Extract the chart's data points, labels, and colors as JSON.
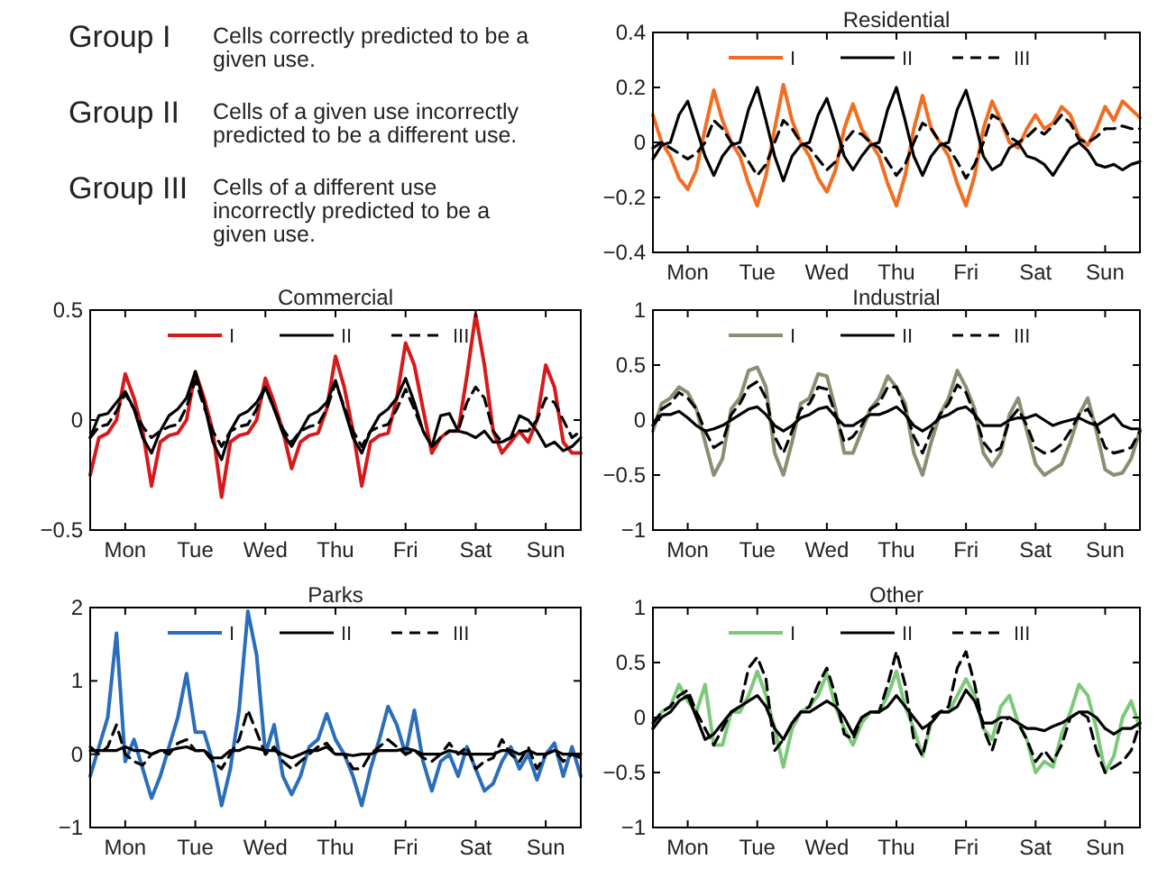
{
  "chart_data": [
    {
      "type": "other",
      "annotations": [
        "Group I",
        "Cells correctly predicted to be a given use.",
        "Group II",
        "Cells of a given use incorrectly predicted to be a different use.",
        "Group III",
        "Cells of a different use incorrectly predicted to be a given use."
      ]
    },
    {
      "type": "line",
      "title": "Residential",
      "categories": [
        null,
        null,
        null,
        null,
        "Mon",
        null,
        null,
        null,
        null,
        null,
        null,
        null,
        "Tue",
        null,
        null,
        null,
        null,
        null,
        null,
        null,
        "Wed",
        null,
        null,
        null,
        null,
        null,
        null,
        null,
        "Thu",
        null,
        null,
        null,
        null,
        null,
        null,
        null,
        "Fri",
        null,
        null,
        null,
        null,
        null,
        null,
        null,
        "Sat",
        null,
        null,
        null,
        null,
        null,
        null,
        null,
        "Sun",
        null,
        null,
        null,
        null
      ],
      "ylim": [
        -0.4,
        0.4
      ],
      "yticks": [
        -0.4,
        -0.2,
        0,
        0.2,
        0.4
      ],
      "legend": "top",
      "series": [
        {
          "name": "I",
          "color": "#f26d21",
          "values": [
            0.1,
            0.0,
            -0.05,
            -0.13,
            -0.17,
            -0.1,
            0.05,
            0.19,
            0.08,
            0.0,
            -0.05,
            -0.15,
            -0.23,
            -0.12,
            0.05,
            0.21,
            0.08,
            0.0,
            -0.05,
            -0.13,
            -0.18,
            -0.1,
            0.05,
            0.14,
            0.05,
            0.0,
            -0.05,
            -0.15,
            -0.23,
            -0.12,
            0.05,
            0.17,
            0.05,
            0.0,
            -0.05,
            -0.15,
            -0.23,
            -0.12,
            0.05,
            0.15,
            0.08,
            0.0,
            -0.02,
            0.05,
            0.1,
            0.05,
            0.07,
            0.13,
            0.1,
            0.02,
            -0.01,
            0.05,
            0.13,
            0.08,
            0.15,
            0.12,
            0.09
          ]
        },
        {
          "name": "II",
          "color": "#000000",
          "line_style": "solid",
          "values": [
            -0.06,
            -0.01,
            0.0,
            0.1,
            0.15,
            0.05,
            -0.05,
            -0.12,
            -0.05,
            -0.01,
            0.0,
            0.12,
            0.2,
            0.08,
            -0.05,
            -0.14,
            -0.05,
            -0.01,
            0.0,
            0.1,
            0.16,
            0.06,
            -0.05,
            -0.1,
            -0.05,
            -0.01,
            0.0,
            0.12,
            0.2,
            0.08,
            -0.05,
            -0.12,
            -0.05,
            -0.01,
            0.0,
            0.12,
            0.19,
            0.08,
            -0.05,
            -0.1,
            -0.08,
            -0.02,
            0.0,
            -0.05,
            -0.06,
            -0.08,
            -0.12,
            -0.07,
            -0.02,
            0.0,
            -0.03,
            -0.08,
            -0.09,
            -0.08,
            -0.1,
            -0.08,
            -0.07
          ]
        },
        {
          "name": "III",
          "color": "#000000",
          "line_style": "dashed",
          "values": [
            -0.02,
            0.0,
            -0.02,
            -0.04,
            -0.06,
            -0.04,
            0.0,
            0.08,
            0.05,
            0.0,
            -0.02,
            -0.07,
            -0.12,
            -0.08,
            0.0,
            0.08,
            0.05,
            0.0,
            -0.02,
            -0.06,
            -0.1,
            -0.07,
            0.0,
            0.04,
            0.03,
            0.0,
            -0.02,
            -0.07,
            -0.12,
            -0.08,
            0.0,
            0.07,
            0.05,
            0.0,
            -0.02,
            -0.07,
            -0.13,
            -0.08,
            0.0,
            0.1,
            0.08,
            0.02,
            0.0,
            0.02,
            0.05,
            0.03,
            0.06,
            0.1,
            0.07,
            0.01,
            0.0,
            0.02,
            0.05,
            0.05,
            0.06,
            0.05,
            0.05
          ]
        }
      ]
    },
    {
      "type": "line",
      "title": "Commercial",
      "categories": [
        null,
        null,
        null,
        null,
        "Mon",
        null,
        null,
        null,
        null,
        null,
        null,
        null,
        "Tue",
        null,
        null,
        null,
        null,
        null,
        null,
        null,
        "Wed",
        null,
        null,
        null,
        null,
        null,
        null,
        null,
        "Thu",
        null,
        null,
        null,
        null,
        null,
        null,
        null,
        "Fri",
        null,
        null,
        null,
        null,
        null,
        null,
        null,
        "Sat",
        null,
        null,
        null,
        null,
        null,
        null,
        null,
        "Sun",
        null,
        null,
        null,
        null
      ],
      "ylim": [
        -0.5,
        0.5
      ],
      "yticks": [
        -0.5,
        0,
        0.5
      ],
      "legend": "top",
      "series": [
        {
          "name": "I",
          "color": "#d7191c",
          "values": [
            -0.25,
            -0.08,
            -0.06,
            0.0,
            0.21,
            0.1,
            -0.05,
            -0.3,
            -0.1,
            -0.07,
            -0.06,
            0.0,
            0.22,
            0.1,
            -0.05,
            -0.35,
            -0.1,
            -0.07,
            -0.06,
            0.0,
            0.19,
            0.08,
            -0.05,
            -0.22,
            -0.1,
            -0.07,
            -0.06,
            0.05,
            0.29,
            0.15,
            -0.05,
            -0.3,
            -0.1,
            -0.07,
            -0.06,
            0.1,
            0.35,
            0.25,
            0.05,
            -0.15,
            -0.08,
            -0.05,
            -0.05,
            0.2,
            0.48,
            0.25,
            -0.05,
            -0.15,
            -0.1,
            -0.05,
            -0.1,
            0.0,
            0.25,
            0.15,
            -0.1,
            -0.15,
            -0.15
          ]
        },
        {
          "name": "II",
          "color": "#000000",
          "line_style": "solid",
          "values": [
            -0.08,
            0.02,
            0.03,
            0.08,
            0.13,
            0.05,
            -0.08,
            -0.15,
            -0.05,
            0.02,
            0.05,
            0.1,
            0.22,
            0.08,
            -0.1,
            -0.18,
            -0.05,
            0.02,
            0.04,
            0.08,
            0.15,
            0.05,
            -0.06,
            -0.12,
            -0.05,
            0.02,
            0.04,
            0.08,
            0.18,
            0.05,
            -0.08,
            -0.15,
            -0.05,
            0.02,
            0.05,
            0.1,
            0.19,
            0.08,
            -0.05,
            -0.12,
            0.02,
            0.03,
            -0.05,
            -0.06,
            -0.08,
            -0.05,
            -0.1,
            -0.1,
            -0.08,
            0.02,
            0.0,
            -0.05,
            -0.12,
            -0.1,
            -0.14,
            -0.12,
            -0.08
          ]
        },
        {
          "name": "III",
          "color": "#000000",
          "line_style": "dashed",
          "values": [
            -0.08,
            -0.03,
            -0.02,
            0.04,
            0.12,
            0.05,
            -0.03,
            -0.08,
            -0.05,
            -0.03,
            -0.02,
            0.06,
            0.18,
            0.06,
            -0.05,
            -0.12,
            -0.05,
            -0.03,
            -0.02,
            0.05,
            0.15,
            0.05,
            -0.04,
            -0.1,
            -0.05,
            -0.03,
            -0.02,
            0.05,
            0.17,
            0.06,
            -0.05,
            -0.12,
            -0.05,
            -0.03,
            -0.02,
            0.05,
            0.14,
            0.05,
            -0.05,
            -0.12,
            -0.08,
            -0.05,
            -0.05,
            0.08,
            0.15,
            0.1,
            -0.05,
            -0.1,
            -0.08,
            -0.05,
            -0.05,
            0.0,
            0.1,
            0.08,
            0.0,
            -0.08,
            -0.05
          ]
        }
      ]
    },
    {
      "type": "line",
      "title": "Industrial",
      "categories": [
        null,
        null,
        null,
        null,
        "Mon",
        null,
        null,
        null,
        null,
        null,
        null,
        null,
        "Tue",
        null,
        null,
        null,
        null,
        null,
        null,
        null,
        "Wed",
        null,
        null,
        null,
        null,
        null,
        null,
        null,
        "Thu",
        null,
        null,
        null,
        null,
        null,
        null,
        null,
        "Fri",
        null,
        null,
        null,
        null,
        null,
        null,
        null,
        "Sat",
        null,
        null,
        null,
        null,
        null,
        null,
        null,
        "Sun",
        null,
        null,
        null,
        null
      ],
      "ylim": [
        -1,
        1
      ],
      "yticks": [
        -1,
        -0.5,
        0,
        0.5,
        1
      ],
      "legend": "top",
      "series": [
        {
          "name": "I",
          "color": "#8a8f72",
          "values": [
            -0.1,
            0.15,
            0.2,
            0.3,
            0.25,
            0.1,
            -0.2,
            -0.5,
            -0.35,
            0.1,
            0.2,
            0.45,
            0.48,
            0.3,
            -0.3,
            -0.5,
            -0.2,
            0.15,
            0.2,
            0.42,
            0.4,
            0.1,
            -0.3,
            -0.3,
            -0.1,
            0.1,
            0.2,
            0.4,
            0.3,
            0.15,
            -0.3,
            -0.5,
            -0.2,
            0.05,
            0.2,
            0.45,
            0.3,
            0.1,
            -0.3,
            -0.42,
            -0.3,
            0.05,
            0.2,
            -0.1,
            -0.4,
            -0.5,
            -0.45,
            -0.4,
            -0.2,
            0.05,
            0.2,
            -0.1,
            -0.45,
            -0.5,
            -0.48,
            -0.35,
            -0.1
          ]
        },
        {
          "name": "II",
          "color": "#000000",
          "line_style": "solid",
          "values": [
            -0.05,
            0.05,
            0.05,
            0.08,
            0.02,
            -0.05,
            -0.1,
            -0.08,
            -0.05,
            0.0,
            0.05,
            0.1,
            0.12,
            0.05,
            -0.05,
            -0.1,
            -0.05,
            0.02,
            0.05,
            0.1,
            0.12,
            0.03,
            -0.05,
            -0.05,
            0.0,
            0.05,
            0.05,
            0.08,
            0.12,
            0.05,
            -0.05,
            -0.1,
            -0.05,
            0.02,
            0.05,
            0.1,
            0.12,
            0.05,
            -0.05,
            -0.05,
            -0.05,
            0.0,
            0.02,
            0.02,
            0.05,
            0.0,
            -0.05,
            -0.02,
            0.0,
            0.02,
            -0.02,
            -0.05,
            0.0,
            0.05,
            -0.05,
            -0.08,
            -0.08
          ]
        },
        {
          "name": "III",
          "color": "#000000",
          "line_style": "dashed",
          "values": [
            -0.05,
            0.1,
            0.15,
            0.25,
            0.2,
            0.1,
            -0.1,
            -0.25,
            -0.2,
            0.05,
            0.15,
            0.3,
            0.35,
            0.2,
            -0.15,
            -0.3,
            -0.1,
            0.1,
            0.15,
            0.3,
            0.28,
            0.05,
            -0.2,
            -0.15,
            -0.05,
            0.1,
            0.15,
            0.3,
            0.3,
            0.1,
            -0.15,
            -0.3,
            -0.1,
            0.05,
            0.15,
            0.32,
            0.25,
            0.05,
            -0.2,
            -0.3,
            -0.25,
            0.0,
            0.1,
            -0.05,
            -0.25,
            -0.3,
            -0.28,
            -0.22,
            -0.1,
            0.05,
            0.1,
            -0.05,
            -0.25,
            -0.3,
            -0.28,
            -0.25,
            -0.1
          ]
        }
      ]
    },
    {
      "type": "line",
      "title": "Parks",
      "categories": [
        null,
        null,
        null,
        null,
        "Mon",
        null,
        null,
        null,
        null,
        null,
        null,
        null,
        "Tue",
        null,
        null,
        null,
        null,
        null,
        null,
        null,
        "Wed",
        null,
        null,
        null,
        null,
        null,
        null,
        null,
        "Thu",
        null,
        null,
        null,
        null,
        null,
        null,
        null,
        "Fri",
        null,
        null,
        null,
        null,
        null,
        null,
        null,
        "Sat",
        null,
        null,
        null,
        null,
        null,
        null,
        null,
        "Sun",
        null,
        null,
        null,
        null
      ],
      "ylim": [
        -1,
        2
      ],
      "yticks": [
        -1,
        0,
        1,
        2
      ],
      "legend": "top",
      "series": [
        {
          "name": "I",
          "color": "#2a6ebb",
          "values": [
            -0.3,
            0.1,
            0.5,
            1.65,
            -0.1,
            0.2,
            -0.2,
            -0.6,
            -0.3,
            0.1,
            0.5,
            1.1,
            0.3,
            0.3,
            -0.1,
            -0.7,
            -0.2,
            0.6,
            1.95,
            1.35,
            0.0,
            0.4,
            -0.3,
            -0.55,
            -0.3,
            0.1,
            0.2,
            0.55,
            0.2,
            0.0,
            -0.3,
            -0.7,
            -0.2,
            0.2,
            0.65,
            0.4,
            0.0,
            0.6,
            -0.1,
            -0.5,
            -0.1,
            0.0,
            -0.3,
            0.1,
            -0.2,
            -0.5,
            -0.4,
            -0.1,
            0.1,
            -0.2,
            0.0,
            -0.35,
            0.0,
            0.15,
            -0.3,
            0.1,
            -0.3
          ]
        },
        {
          "name": "II",
          "color": "#000000",
          "line_style": "solid",
          "values": [
            0.05,
            0.05,
            0.05,
            0.05,
            0.1,
            0.05,
            0.05,
            0.0,
            0.05,
            0.05,
            0.08,
            0.1,
            0.05,
            0.05,
            -0.05,
            -0.05,
            0.05,
            0.05,
            0.1,
            0.08,
            0.05,
            0.05,
            0.0,
            -0.05,
            0.0,
            0.05,
            0.05,
            0.1,
            0.0,
            0.0,
            -0.02,
            0.0,
            0.0,
            0.05,
            0.05,
            0.05,
            0.08,
            0.05,
            0.0,
            0.0,
            0.0,
            0.05,
            0.02,
            0.0,
            0.0,
            0.0,
            0.0,
            0.05,
            0.05,
            0.0,
            0.05,
            0.0,
            0.0,
            0.05,
            0.0,
            0.0,
            0.0
          ]
        },
        {
          "name": "III",
          "color": "#000000",
          "line_style": "dashed",
          "values": [
            0.1,
            0.0,
            0.1,
            0.4,
            0.0,
            -0.1,
            -0.15,
            0.0,
            0.05,
            0.0,
            0.15,
            0.2,
            0.05,
            0.05,
            -0.1,
            -0.2,
            0.0,
            0.2,
            0.6,
            0.3,
            0.0,
            0.1,
            -0.1,
            -0.2,
            -0.1,
            0.0,
            0.1,
            0.15,
            0.0,
            0.0,
            -0.2,
            -0.2,
            0.0,
            0.1,
            0.2,
            0.1,
            0.0,
            0.05,
            -0.05,
            -0.1,
            0.0,
            0.15,
            0.0,
            0.1,
            -0.2,
            -0.1,
            -0.05,
            0.2,
            0.0,
            -0.1,
            0.1,
            -0.2,
            0.0,
            0.05,
            -0.1,
            0.0,
            -0.05
          ]
        }
      ]
    },
    {
      "type": "line",
      "title": "Other",
      "categories": [
        null,
        null,
        null,
        null,
        "Mon",
        null,
        null,
        null,
        null,
        null,
        null,
        null,
        "Tue",
        null,
        null,
        null,
        null,
        null,
        null,
        null,
        "Wed",
        null,
        null,
        null,
        null,
        null,
        null,
        null,
        "Thu",
        null,
        null,
        null,
        null,
        null,
        null,
        null,
        "Fri",
        null,
        null,
        null,
        null,
        null,
        null,
        null,
        "Sat",
        null,
        null,
        null,
        null,
        null,
        null,
        null,
        "Sun",
        null,
        null,
        null,
        null
      ],
      "ylim": [
        -1,
        1
      ],
      "yticks": [
        -1,
        -0.5,
        0,
        0.5,
        1
      ],
      "legend": "top",
      "series": [
        {
          "name": "I",
          "color": "#7dc97a",
          "values": [
            -0.1,
            0.05,
            0.1,
            0.3,
            0.15,
            0.05,
            0.3,
            -0.25,
            -0.25,
            0.05,
            0.05,
            0.2,
            0.42,
            0.2,
            -0.1,
            -0.45,
            -0.1,
            0.05,
            0.1,
            0.2,
            0.4,
            0.1,
            -0.1,
            -0.25,
            -0.05,
            0.05,
            0.05,
            0.2,
            0.42,
            0.1,
            -0.1,
            -0.35,
            -0.05,
            0.05,
            0.05,
            0.2,
            0.35,
            0.2,
            -0.1,
            -0.2,
            0.1,
            0.2,
            -0.05,
            -0.2,
            -0.5,
            -0.4,
            -0.45,
            -0.15,
            0.05,
            0.3,
            0.2,
            -0.1,
            -0.5,
            -0.35,
            0.0,
            0.15,
            -0.1
          ]
        },
        {
          "name": "II",
          "color": "#000000",
          "line_style": "solid",
          "values": [
            -0.1,
            0.0,
            0.05,
            0.15,
            0.2,
            0.0,
            -0.2,
            -0.15,
            -0.05,
            0.05,
            0.1,
            0.15,
            0.2,
            0.1,
            -0.1,
            -0.2,
            -0.05,
            0.05,
            0.05,
            0.1,
            0.15,
            0.1,
            0.0,
            -0.15,
            0.0,
            0.05,
            0.05,
            0.1,
            0.2,
            0.1,
            0.0,
            -0.1,
            -0.05,
            0.05,
            0.05,
            0.1,
            0.25,
            0.15,
            -0.05,
            -0.05,
            0.0,
            0.0,
            -0.05,
            -0.1,
            -0.1,
            -0.12,
            -0.08,
            -0.05,
            0.0,
            0.05,
            0.05,
            0.0,
            -0.1,
            -0.15,
            -0.1,
            -0.1,
            -0.05
          ]
        },
        {
          "name": "III",
          "color": "#000000",
          "line_style": "dashed",
          "values": [
            -0.05,
            0.05,
            0.1,
            0.2,
            0.25,
            0.05,
            -0.1,
            -0.25,
            -0.1,
            0.05,
            0.1,
            0.45,
            0.55,
            0.35,
            -0.3,
            -0.2,
            -0.05,
            0.05,
            0.1,
            0.3,
            0.45,
            0.2,
            -0.15,
            -0.2,
            0.0,
            0.05,
            0.05,
            0.3,
            0.6,
            0.3,
            -0.2,
            -0.35,
            0.0,
            0.05,
            0.1,
            0.45,
            0.6,
            0.3,
            -0.1,
            -0.3,
            -0.05,
            0.0,
            -0.05,
            -0.2,
            -0.4,
            -0.3,
            -0.4,
            -0.25,
            0.0,
            0.05,
            0.0,
            -0.3,
            -0.5,
            -0.45,
            -0.4,
            -0.3,
            -0.05
          ]
        }
      ]
    }
  ]
}
